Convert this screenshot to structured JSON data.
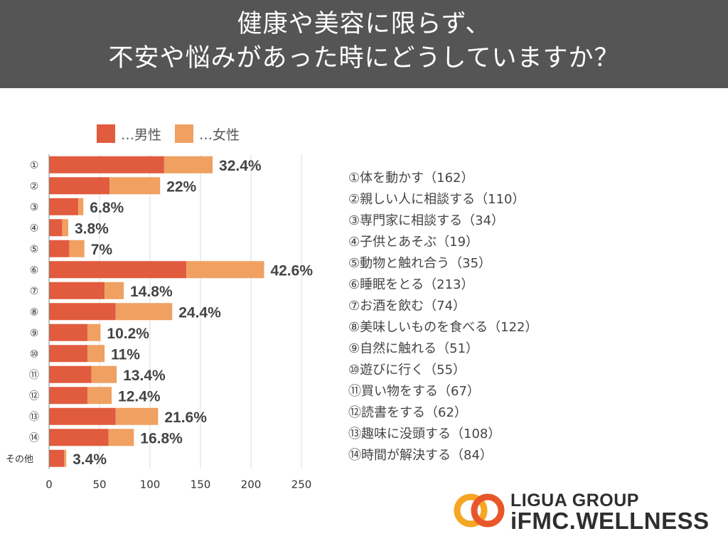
{
  "header": {
    "title_line1": "健康や美容に限らず、",
    "title_line2": "不安や悩みがあった時にどうしていますか？"
  },
  "colors": {
    "male": "#e15b3f",
    "female": "#f0a060",
    "header_bg": "#555555",
    "grid": "#dddddd"
  },
  "chart_data": {
    "type": "bar",
    "orientation": "horizontal",
    "stacked": true,
    "title": "健康や美容に限らず、不安や悩みがあった時にどうしていますか？",
    "legend": [
      "…男性",
      "…女性"
    ],
    "legend_position": "top",
    "categories": [
      "①",
      "②",
      "③",
      "④",
      "⑤",
      "⑥",
      "⑦",
      "⑧",
      "⑨",
      "⑩",
      "⑪",
      "⑫",
      "⑬",
      "⑭",
      "その他"
    ],
    "series": [
      {
        "name": "…男性",
        "values": [
          114,
          60,
          29,
          13,
          20,
          136,
          55,
          66,
          38,
          38,
          42,
          38,
          66,
          59,
          15
        ]
      },
      {
        "name": "…女性",
        "values": [
          48,
          50,
          5,
          6,
          15,
          77,
          19,
          56,
          13,
          17,
          25,
          24,
          42,
          25,
          2
        ]
      }
    ],
    "data_labels": [
      "32.4%",
      "22%",
      "6.8%",
      "3.8%",
      "7%",
      "42.6%",
      "14.8%",
      "24.4%",
      "10.2%",
      "11%",
      "13.4%",
      "12.4%",
      "21.6%",
      "16.8%",
      "3.4%"
    ],
    "xlim": [
      0,
      250
    ],
    "xticks": [
      0,
      50,
      100,
      150,
      200,
      250
    ],
    "grid": true
  },
  "answers": [
    "①体を動かす（162）",
    "②親しい人に相談する（110）",
    "③専門家に相談する（34）",
    "④子供とあそぶ（19）",
    "⑤動物と触れ合う（35）",
    "⑥睡眠をとる（213）",
    "⑦お酒を飲む（74）",
    "⑧美味しいものを食べる（122）",
    "⑨自然に触れる（51）",
    "⑩遊びに行く（55）",
    "⑪買い物をする（67）",
    "⑫読書をする（62）",
    "⑬趣味に没頭する（108）",
    "⑭時間が解決する（84）"
  ],
  "logo": {
    "line1": "LIGUA GROUP",
    "line2": "iFMC.WELLNESS"
  }
}
